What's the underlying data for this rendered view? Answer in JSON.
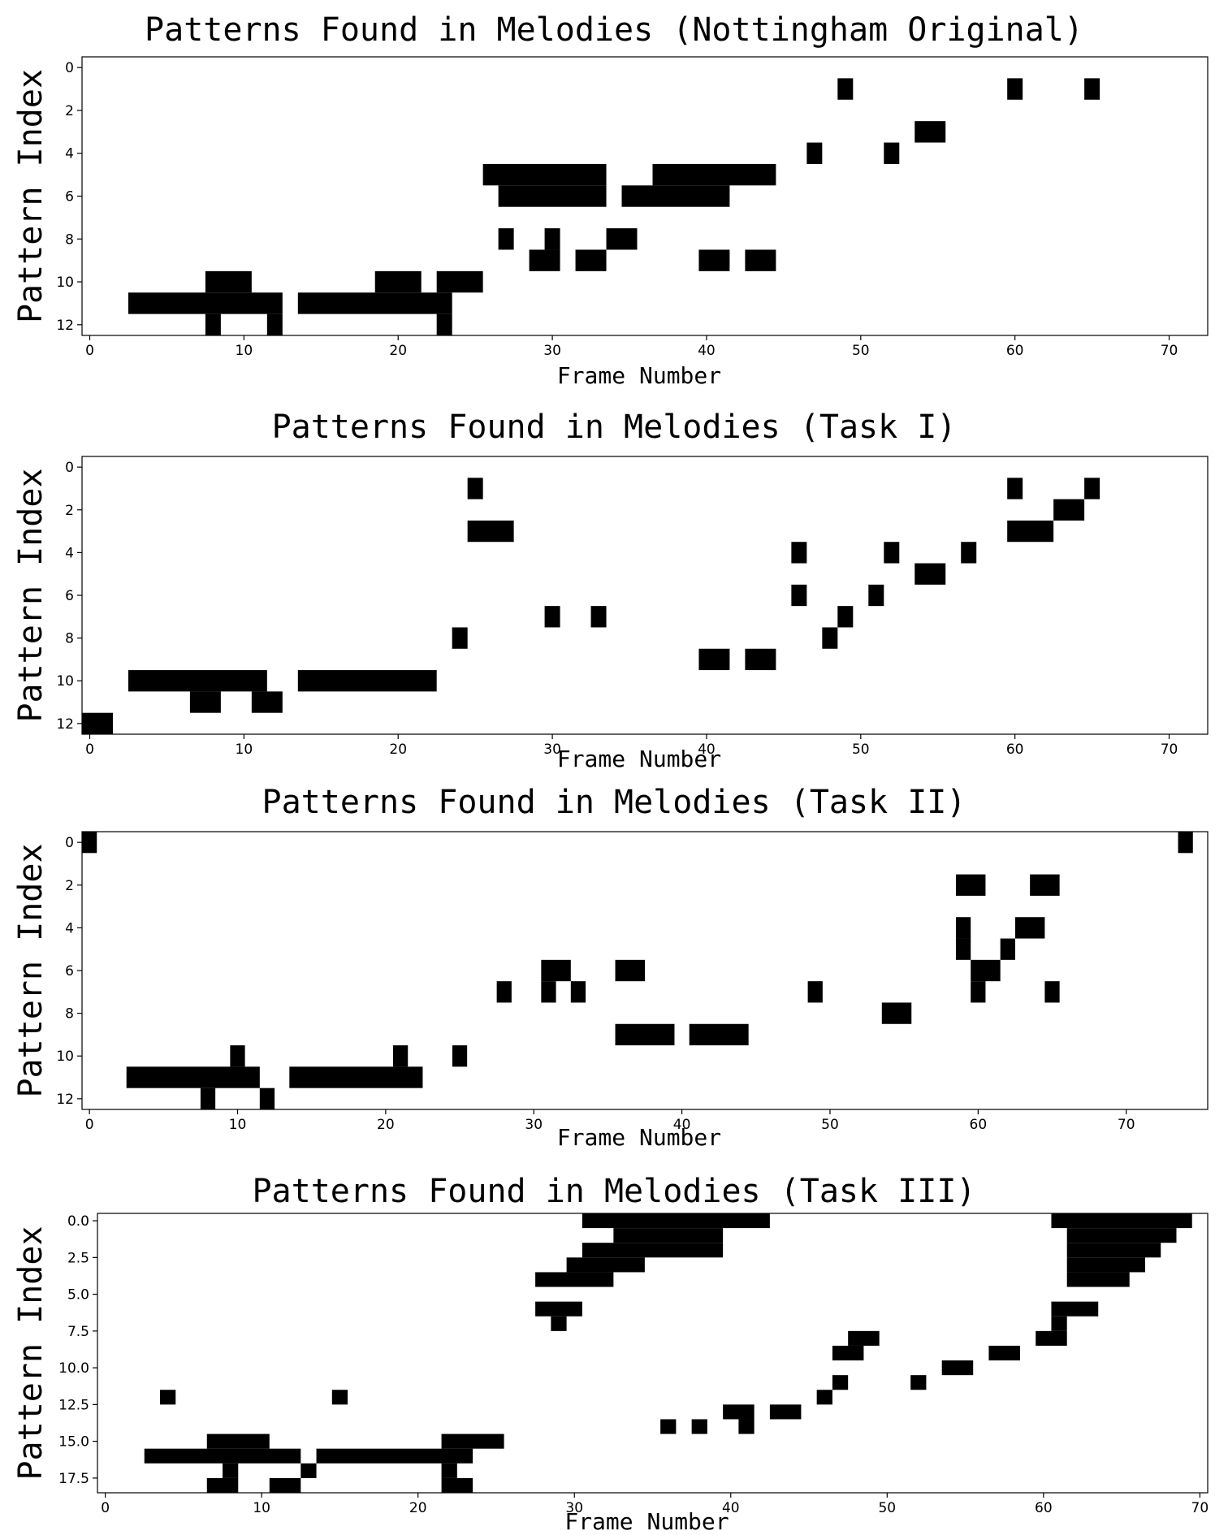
{
  "chart_data": [
    {
      "type": "heatmap",
      "title": "Patterns Found in Melodies (Nottingham Original)",
      "xlabel": "Frame Number",
      "ylabel": "Pattern Index",
      "xlim": [
        -0.5,
        72.5
      ],
      "ylim": [
        12.5,
        -0.5
      ],
      "xticks": [
        0,
        10,
        20,
        30,
        40,
        50,
        60,
        70
      ],
      "yticks": [
        0,
        2,
        4,
        6,
        8,
        10,
        12
      ],
      "ytick_labels": [
        "0",
        "2",
        "4",
        "6",
        "8",
        "10",
        "12"
      ],
      "value_color": "#000000",
      "background": "#ffffff",
      "cells": [
        {
          "row": 1,
          "frames": [
            49,
            60,
            65
          ]
        },
        {
          "row": 3,
          "frames": [
            [
              54,
              55
            ]
          ]
        },
        {
          "row": 4,
          "frames": [
            47,
            52
          ]
        },
        {
          "row": 5,
          "frames": [
            [
              26,
              33
            ],
            [
              37,
              44
            ]
          ]
        },
        {
          "row": 6,
          "frames": [
            [
              27,
              33
            ],
            [
              35,
              41
            ]
          ]
        },
        {
          "row": 8,
          "frames": [
            27,
            30,
            [
              34,
              35
            ]
          ]
        },
        {
          "row": 9,
          "frames": [
            [
              29,
              30
            ],
            [
              32,
              33
            ],
            [
              40,
              41
            ],
            [
              43,
              44
            ]
          ]
        },
        {
          "row": 10,
          "frames": [
            [
              8,
              10
            ],
            [
              19,
              21
            ],
            [
              23,
              25
            ]
          ]
        },
        {
          "row": 11,
          "frames": [
            [
              3,
              12
            ],
            [
              14,
              23
            ]
          ]
        },
        {
          "row": 12,
          "frames": [
            8,
            12,
            23
          ]
        }
      ]
    },
    {
      "type": "heatmap",
      "title": "Patterns Found in Melodies (Task I)",
      "xlabel": "Frame Number",
      "ylabel": "Pattern Index",
      "xlim": [
        -0.5,
        72.5
      ],
      "ylim": [
        12.5,
        -0.5
      ],
      "xticks": [
        0,
        10,
        20,
        30,
        40,
        50,
        60,
        70
      ],
      "yticks": [
        0,
        2,
        4,
        6,
        8,
        10,
        12
      ],
      "ytick_labels": [
        "0",
        "2",
        "4",
        "6",
        "8",
        "10",
        "12"
      ],
      "value_color": "#000000",
      "background": "#ffffff",
      "cells": [
        {
          "row": 1,
          "frames": [
            25,
            60,
            65
          ]
        },
        {
          "row": 2,
          "frames": [
            [
              63,
              64
            ]
          ]
        },
        {
          "row": 3,
          "frames": [
            [
              25,
              27
            ],
            [
              60,
              62
            ]
          ]
        },
        {
          "row": 4,
          "frames": [
            46,
            52,
            57
          ]
        },
        {
          "row": 5,
          "frames": [
            [
              54,
              55
            ]
          ]
        },
        {
          "row": 6,
          "frames": [
            46,
            51
          ]
        },
        {
          "row": 7,
          "frames": [
            30,
            33,
            49
          ]
        },
        {
          "row": 8,
          "frames": [
            24,
            48
          ]
        },
        {
          "row": 9,
          "frames": [
            [
              40,
              41
            ],
            [
              43,
              44
            ]
          ]
        },
        {
          "row": 10,
          "frames": [
            [
              3,
              11
            ],
            [
              14,
              22
            ]
          ]
        },
        {
          "row": 11,
          "frames": [
            [
              7,
              8
            ],
            [
              11,
              12
            ]
          ]
        },
        {
          "row": 12,
          "frames": [
            [
              0,
              1
            ]
          ]
        }
      ]
    },
    {
      "type": "heatmap",
      "title": "Patterns Found in Melodies (Task II)",
      "xlabel": "Frame Number",
      "ylabel": "Pattern Index",
      "xlim": [
        -0.5,
        75.5
      ],
      "ylim": [
        12.5,
        -0.5
      ],
      "xticks": [
        0,
        10,
        20,
        30,
        40,
        50,
        60,
        70
      ],
      "yticks": [
        0,
        2,
        4,
        6,
        8,
        10,
        12
      ],
      "ytick_labels": [
        "0",
        "2",
        "4",
        "6",
        "8",
        "10",
        "12"
      ],
      "value_color": "#000000",
      "background": "#ffffff",
      "cells": [
        {
          "row": 0,
          "frames": [
            0,
            74
          ]
        },
        {
          "row": 2,
          "frames": [
            [
              59,
              60
            ],
            [
              64,
              65
            ]
          ]
        },
        {
          "row": 4,
          "frames": [
            59,
            [
              63,
              64
            ]
          ]
        },
        {
          "row": 5,
          "frames": [
            59,
            62
          ]
        },
        {
          "row": 6,
          "frames": [
            [
              31,
              32
            ],
            [
              36,
              37
            ],
            [
              60,
              61
            ]
          ]
        },
        {
          "row": 7,
          "frames": [
            28,
            31,
            33,
            49,
            60,
            65
          ]
        },
        {
          "row": 8,
          "frames": [
            [
              54,
              55
            ]
          ]
        },
        {
          "row": 9,
          "frames": [
            [
              36,
              39
            ],
            [
              41,
              44
            ]
          ]
        },
        {
          "row": 10,
          "frames": [
            10,
            21,
            25
          ]
        },
        {
          "row": 11,
          "frames": [
            [
              3,
              11
            ],
            [
              14,
              22
            ]
          ]
        },
        {
          "row": 12,
          "frames": [
            8,
            12
          ]
        }
      ]
    },
    {
      "type": "heatmap",
      "title": "Patterns Found in Melodies (Task III)",
      "xlabel": "Frame Number",
      "ylabel": "Pattern Index",
      "xlim": [
        -0.5,
        70.5
      ],
      "ylim": [
        18.5,
        -0.5
      ],
      "xticks": [
        0,
        10,
        20,
        30,
        40,
        50,
        60,
        70
      ],
      "yticks": [
        0,
        2.5,
        5,
        7.5,
        10,
        12.5,
        15,
        17.5
      ],
      "ytick_labels": [
        "0.0",
        "2.5",
        "5.0",
        "7.5",
        "10.0",
        "12.5",
        "15.0",
        "17.5"
      ],
      "value_color": "#000000",
      "background": "#ffffff",
      "cells": [
        {
          "row": 0,
          "frames": [
            [
              31,
              42
            ],
            [
              61,
              69
            ]
          ]
        },
        {
          "row": 1,
          "frames": [
            [
              33,
              39
            ],
            [
              62,
              68
            ]
          ]
        },
        {
          "row": 2,
          "frames": [
            [
              31,
              39
            ],
            [
              62,
              67
            ]
          ]
        },
        {
          "row": 3,
          "frames": [
            [
              30,
              34
            ],
            [
              62,
              66
            ]
          ]
        },
        {
          "row": 4,
          "frames": [
            [
              28,
              32
            ],
            [
              62,
              65
            ]
          ]
        },
        {
          "row": 6,
          "frames": [
            [
              28,
              30
            ],
            [
              61,
              63
            ]
          ]
        },
        {
          "row": 7,
          "frames": [
            29,
            61
          ]
        },
        {
          "row": 8,
          "frames": [
            [
              48,
              49
            ],
            [
              60,
              61
            ]
          ]
        },
        {
          "row": 9,
          "frames": [
            [
              47,
              48
            ],
            [
              57,
              58
            ]
          ]
        },
        {
          "row": 10,
          "frames": [
            [
              54,
              55
            ]
          ]
        },
        {
          "row": 11,
          "frames": [
            47,
            52
          ]
        },
        {
          "row": 12,
          "frames": [
            4,
            15,
            46
          ]
        },
        {
          "row": 13,
          "frames": [
            [
              40,
              41
            ],
            [
              43,
              44
            ]
          ]
        },
        {
          "row": 14,
          "frames": [
            36,
            38,
            41
          ]
        },
        {
          "row": 15,
          "frames": [
            [
              7,
              10
            ],
            [
              22,
              25
            ]
          ]
        },
        {
          "row": 16,
          "frames": [
            [
              3,
              12
            ],
            [
              14,
              23
            ]
          ]
        },
        {
          "row": 17,
          "frames": [
            8,
            13,
            22
          ]
        },
        {
          "row": 18,
          "frames": [
            [
              7,
              8
            ],
            [
              11,
              12
            ],
            [
              22,
              23
            ]
          ]
        }
      ]
    }
  ]
}
